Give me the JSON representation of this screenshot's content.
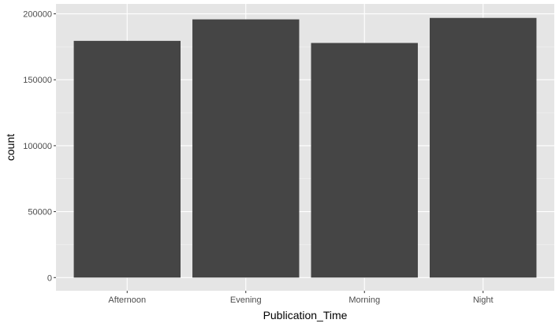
{
  "chart_data": {
    "type": "bar",
    "categories": [
      "Afternoon",
      "Evening",
      "Morning",
      "Night"
    ],
    "values": [
      179500,
      195800,
      177900,
      196900
    ],
    "xlabel": "Publication_Time",
    "ylabel": "count",
    "ylim": [
      -10000,
      207500
    ],
    "yticks": [
      0,
      50000,
      100000,
      150000,
      200000
    ],
    "ytick_labels": [
      "0",
      "50000",
      "100000",
      "150000",
      "200000"
    ],
    "grid": true,
    "legend": "none",
    "colors": {
      "panel_background": "#e5e5e5",
      "grid_major": "#ffffff",
      "grid_minor": "#f2f2f2",
      "bar_fill": "#454545",
      "tick_text": "#4d4d4d",
      "tick_mark": "#333333"
    }
  }
}
